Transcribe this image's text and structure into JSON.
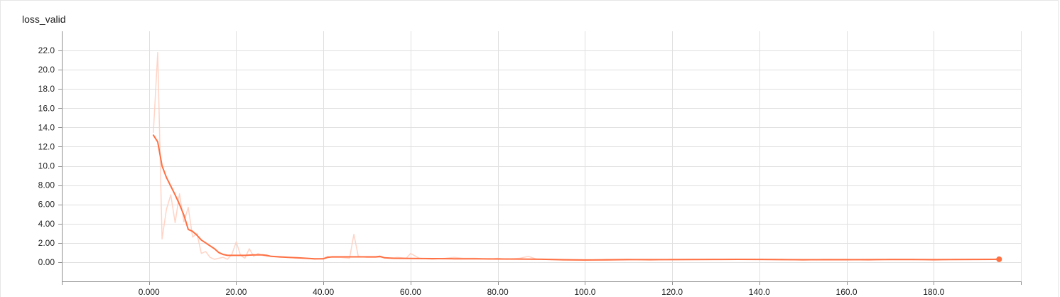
{
  "chart_data": {
    "type": "line",
    "title": "loss_valid",
    "xlabel": "",
    "ylabel": "",
    "xlim": [
      -20,
      200
    ],
    "ylim": [
      -2,
      24
    ],
    "x_ticks": [
      0,
      20,
      40,
      60,
      80,
      100,
      120,
      140,
      160,
      180
    ],
    "x_tick_labels": [
      "0.000",
      "20.00",
      "40.00",
      "60.00",
      "80.00",
      "100.0",
      "120.0",
      "140.0",
      "160.0",
      "180.0"
    ],
    "y_ticks": [
      0,
      2,
      4,
      6,
      8,
      10,
      12,
      14,
      16,
      18,
      20,
      22
    ],
    "y_tick_labels": [
      "0.00",
      "2.00",
      "4.00",
      "6.00",
      "8.00",
      "10.0",
      "12.0",
      "14.0",
      "16.0",
      "18.0",
      "20.0",
      "22.0"
    ],
    "grid": true,
    "colors": {
      "smoothed": "#ff7043",
      "raw": "#ffccbc",
      "grid": "#e0e0e0",
      "axis": "#8f8f8f"
    },
    "series": [
      {
        "role": "raw",
        "x": [
          1,
          2,
          3,
          4,
          5,
          6,
          7,
          8,
          9,
          10,
          11,
          12,
          13,
          14,
          15,
          16,
          17,
          18,
          19,
          20,
          21,
          22,
          23,
          24,
          25,
          26,
          27,
          28,
          30,
          32,
          34,
          36,
          38,
          40,
          41,
          42,
          44,
          46,
          47,
          48,
          50,
          52,
          53,
          55,
          57,
          59,
          60,
          62,
          65,
          68,
          70,
          72,
          75,
          78,
          80,
          82,
          85,
          87,
          89,
          90,
          95,
          100,
          105,
          110,
          115,
          120,
          125,
          130,
          135,
          140,
          145,
          150,
          155,
          160,
          165,
          170,
          175,
          180,
          185,
          190,
          195
        ],
        "y": [
          13.5,
          21.8,
          2.4,
          5.5,
          7.0,
          4.1,
          7.1,
          4.2,
          5.7,
          2.6,
          3.0,
          0.9,
          1.1,
          0.5,
          0.3,
          0.4,
          0.5,
          0.3,
          0.8,
          2.1,
          0.7,
          0.4,
          1.4,
          0.6,
          0.9,
          0.7,
          0.6,
          0.6,
          0.5,
          0.5,
          0.4,
          0.4,
          0.3,
          0.4,
          0.6,
          0.5,
          0.5,
          0.4,
          2.9,
          0.6,
          0.5,
          0.5,
          0.5,
          0.4,
          0.5,
          0.4,
          0.9,
          0.4,
          0.3,
          0.4,
          0.5,
          0.4,
          0.4,
          0.3,
          0.4,
          0.3,
          0.4,
          0.6,
          0.3,
          0.3,
          0.2,
          0.2,
          0.3,
          0.3,
          0.2,
          0.3,
          0.3,
          0.3,
          0.3,
          0.3,
          0.3,
          0.2,
          0.3,
          0.3,
          0.2,
          0.3,
          0.3,
          0.2,
          0.3,
          0.3,
          0.3
        ]
      },
      {
        "role": "smoothed",
        "x": [
          1,
          2,
          3,
          4,
          5,
          6,
          7,
          8,
          9,
          10,
          11,
          12,
          13,
          14,
          15,
          16,
          17,
          18,
          19,
          20,
          22,
          24,
          26,
          27,
          28,
          30,
          32,
          34,
          36,
          38,
          40,
          41,
          42,
          44,
          46,
          48,
          50,
          52,
          53,
          54,
          56,
          60,
          65,
          70,
          75,
          80,
          85,
          90,
          95,
          100,
          105,
          110,
          115,
          120,
          125,
          130,
          135,
          140,
          145,
          150,
          155,
          160,
          165,
          170,
          175,
          180,
          185,
          190,
          195
        ],
        "y": [
          13.2,
          12.5,
          10.0,
          8.8,
          7.9,
          7.0,
          6.0,
          4.9,
          3.4,
          3.2,
          2.8,
          2.3,
          2.0,
          1.7,
          1.4,
          1.0,
          0.8,
          0.7,
          0.7,
          0.7,
          0.7,
          0.75,
          0.75,
          0.7,
          0.6,
          0.55,
          0.5,
          0.45,
          0.4,
          0.35,
          0.35,
          0.5,
          0.55,
          0.55,
          0.55,
          0.55,
          0.55,
          0.55,
          0.6,
          0.45,
          0.4,
          0.38,
          0.36,
          0.35,
          0.34,
          0.33,
          0.32,
          0.3,
          0.25,
          0.22,
          0.24,
          0.26,
          0.26,
          0.26,
          0.27,
          0.28,
          0.29,
          0.28,
          0.26,
          0.25,
          0.25,
          0.25,
          0.26,
          0.27,
          0.27,
          0.26,
          0.27,
          0.28,
          0.3
        ]
      }
    ]
  }
}
